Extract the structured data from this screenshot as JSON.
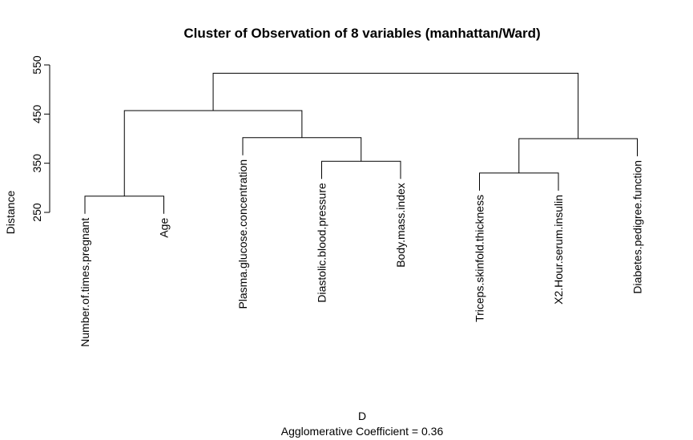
{
  "chart_data": {
    "type": "dendrogram",
    "title": "Cluster of Observation of 8 variables (manhattan/Ward)",
    "ylabel": "Distance",
    "xlabel": "D",
    "sublabel": "Agglomerative Coefficient =  0.36",
    "ylim": [
      250,
      550
    ],
    "yticks": [
      250,
      350,
      450,
      550
    ],
    "leaves": [
      "Number.of.times.pregnant",
      "Age",
      "Plasma.glucose.concentration",
      "Diastolic.blood.pressure",
      "Body.mass.index",
      "Triceps.skinfold.thickness",
      "X2.Hour.serum.insulin",
      "Diabetes.pedigree.function"
    ],
    "merges": [
      {
        "left": "L0",
        "right": "L1",
        "height": 283
      },
      {
        "left": "L3",
        "right": "L4",
        "height": 354
      },
      {
        "left": "L5",
        "right": "L6",
        "height": 330
      },
      {
        "left": "L2",
        "right": "M1",
        "height": 402
      },
      {
        "left": "M2",
        "right": "L7",
        "height": 400
      },
      {
        "left": "M0",
        "right": "M3",
        "height": 457
      },
      {
        "left": "M5",
        "right": "M4",
        "height": 533
      }
    ]
  }
}
